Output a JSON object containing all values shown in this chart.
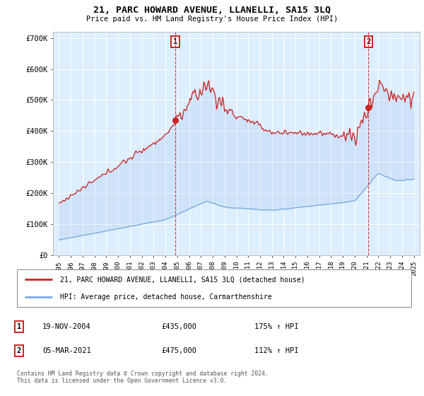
{
  "title": "21, PARC HOWARD AVENUE, LLANELLI, SA15 3LQ",
  "subtitle": "Price paid vs. HM Land Registry's House Price Index (HPI)",
  "legend_line1": "21, PARC HOWARD AVENUE, LLANELLI, SA15 3LQ (detached house)",
  "legend_line2": "HPI: Average price, detached house, Carmarthenshire",
  "transaction1": {
    "label": "1",
    "date": "19-NOV-2004",
    "price": 435000,
    "hpi_note": "175% ↑ HPI"
  },
  "transaction2": {
    "label": "2",
    "date": "05-MAR-2021",
    "price": 475000,
    "hpi_note": "112% ↑ HPI"
  },
  "footer": "Contains HM Land Registry data © Crown copyright and database right 2024.\nThis data is licensed under the Open Government Licence v3.0.",
  "red_color": "#cc2222",
  "blue_color": "#7aaadd",
  "fill_color": "#ddeeff",
  "background_color": "#ffffff",
  "grid_color": "#cccccc",
  "ylim": [
    0,
    720000
  ],
  "yticks": [
    0,
    100000,
    200000,
    300000,
    400000,
    500000,
    600000,
    700000
  ],
  "ytick_labels": [
    "£0",
    "£100K",
    "£200K",
    "£300K",
    "£400K",
    "£500K",
    "£600K",
    "£700K"
  ],
  "t1": 2004.833,
  "t2": 2021.167,
  "price1": 435000,
  "price2": 475000
}
